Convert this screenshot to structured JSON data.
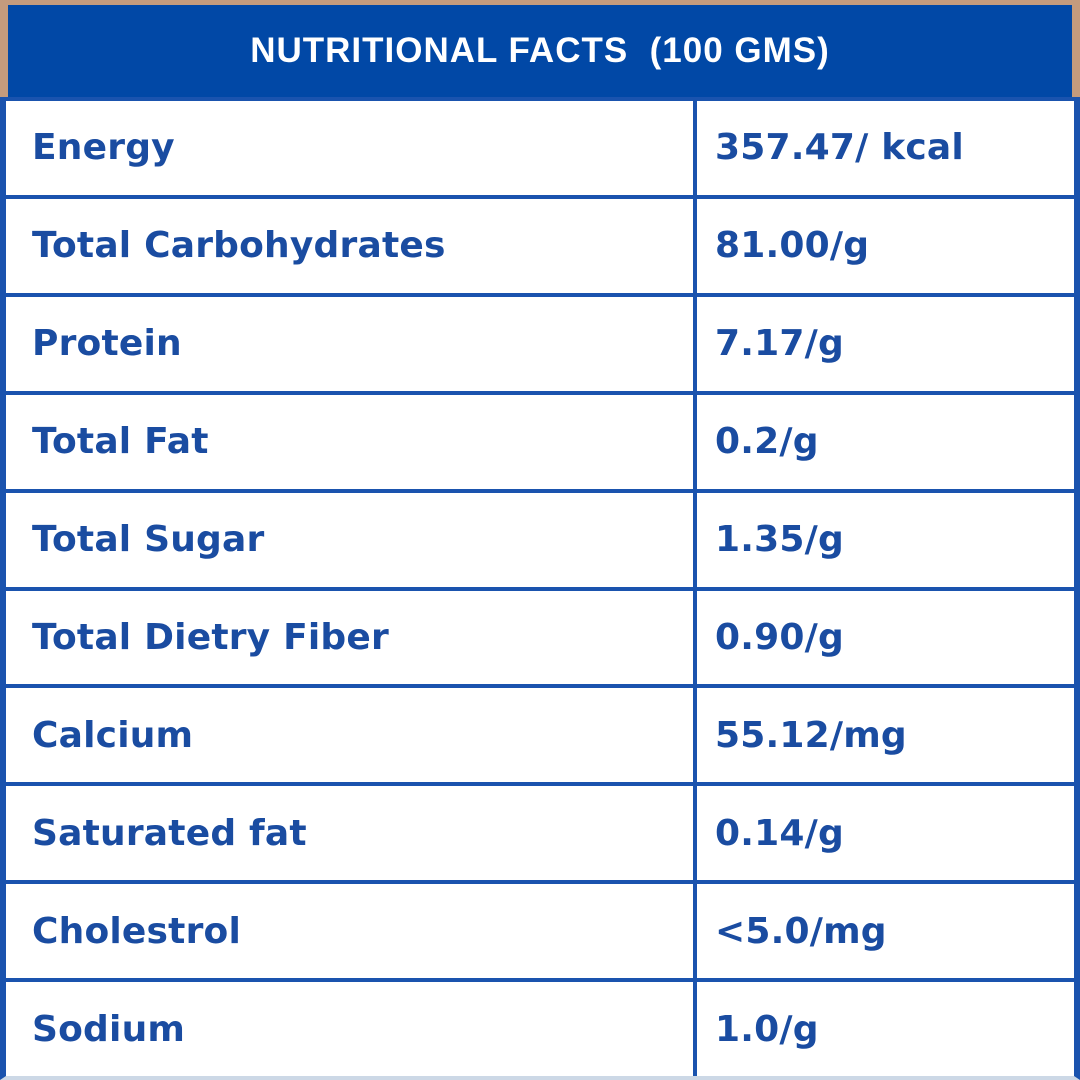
{
  "header": {
    "title": "NUTRITIONAL FACTS  (100 GMS)"
  },
  "table": {
    "rows": [
      {
        "label": "Energy",
        "value": "357.47/ kcal"
      },
      {
        "label": "Total Carbohydrates",
        "value": "81.00/g"
      },
      {
        "label": "Protein",
        "value": "7.17/g"
      },
      {
        "label": "Total Fat",
        "value": "0.2/g"
      },
      {
        "label": "Total Sugar",
        "value": "1.35/g"
      },
      {
        "label": "Total Dietry Fiber",
        "value": "0.90/g"
      },
      {
        "label": "Calcium",
        "value": "55.12/mg"
      },
      {
        "label": "Saturated fat",
        "value": "0.14/g"
      },
      {
        "label": "Cholestrol",
        "value": "<5.0/mg"
      },
      {
        "label": "Sodium",
        "value": "1.0/g"
      }
    ]
  },
  "colors": {
    "frame_tan": "#c49b7d",
    "header_blue": "#0148a6",
    "border_blue": "#1a53ae",
    "text_blue": "#1a4ca1",
    "bottom_line": "#ccd8e6",
    "header_text": "#ffffff"
  }
}
